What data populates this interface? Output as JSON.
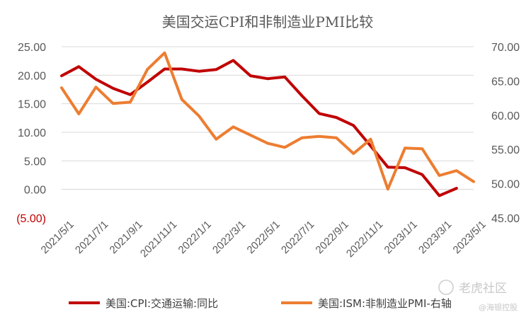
{
  "chart_data": {
    "type": "line",
    "title": "美国交运CPI和非制造业PMI比较",
    "categories": [
      "2021/5/1",
      "2021/6/1",
      "2021/7/1",
      "2021/8/1",
      "2021/9/1",
      "2021/10/1",
      "2021/11/1",
      "2021/12/1",
      "2022/1/1",
      "2022/2/1",
      "2022/3/1",
      "2022/4/1",
      "2022/5/1",
      "2022/6/1",
      "2022/7/1",
      "2022/8/1",
      "2022/9/1",
      "2022/10/1",
      "2022/11/1",
      "2022/12/1",
      "2023/1/1",
      "2023/2/1",
      "2023/3/1",
      "2023/4/1",
      "2023/5/1"
    ],
    "x_tick_labels": [
      "2021/5/1",
      "2021/7/1",
      "2021/9/1",
      "2021/11/1",
      "2022/1/1",
      "2022/3/1",
      "2022/5/1",
      "2022/7/1",
      "2022/9/1",
      "2022/11/1",
      "2023/1/1",
      "2023/3/1",
      "2023/5/1"
    ],
    "y_left": {
      "range": [
        -5,
        25
      ],
      "ticks": [
        -5,
        0,
        5,
        10,
        15,
        20,
        25
      ],
      "tick_labels": [
        "(5.00)",
        "0.00",
        "5.00",
        "10.00",
        "15.00",
        "20.00",
        "25.00"
      ],
      "negative_color": "#c00000"
    },
    "y_right": {
      "range": [
        45,
        70
      ],
      "ticks": [
        45,
        50,
        55,
        60,
        65,
        70
      ],
      "tick_labels": [
        "45.00",
        "50.00",
        "55.00",
        "60.00",
        "65.00",
        "70.00"
      ]
    },
    "grid": true,
    "legend_position": "bottom",
    "series": [
      {
        "name": "美国:CPI:交通运输:同比",
        "axis": "left",
        "color": "#c00000",
        "values": [
          19.9,
          21.5,
          19.3,
          17.7,
          16.6,
          18.8,
          21.1,
          21.1,
          20.7,
          21.0,
          22.6,
          19.9,
          19.4,
          19.7,
          16.4,
          13.3,
          12.6,
          11.2,
          7.6,
          3.9,
          3.8,
          2.6,
          -1.1,
          0.2,
          null
        ]
      },
      {
        "name": "美国:ISM:非制造业PMI-右轴",
        "axis": "right",
        "color": "#ed7d31",
        "values": [
          64.0,
          60.2,
          64.1,
          61.7,
          61.9,
          66.7,
          69.1,
          62.3,
          59.9,
          56.5,
          58.3,
          57.1,
          55.9,
          55.3,
          56.7,
          56.9,
          56.7,
          54.4,
          56.5,
          49.2,
          55.2,
          55.1,
          51.2,
          51.9,
          50.3
        ]
      }
    ]
  },
  "watermark": {
    "text1": "老虎社区",
    "text2": "@海银控股"
  }
}
